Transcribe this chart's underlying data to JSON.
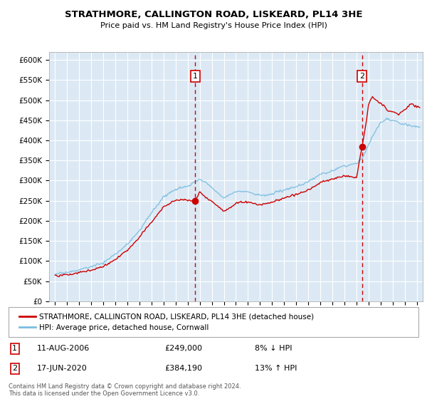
{
  "title": "STRATHMORE, CALLINGTON ROAD, LISKEARD, PL14 3HE",
  "subtitle": "Price paid vs. HM Land Registry's House Price Index (HPI)",
  "background_color": "#ffffff",
  "plot_bg_color": "#dce9f5",
  "grid_color": "#ffffff",
  "ylim": [
    0,
    620000
  ],
  "yticks": [
    0,
    50000,
    100000,
    150000,
    200000,
    250000,
    300000,
    350000,
    400000,
    450000,
    500000,
    550000,
    600000
  ],
  "ytick_labels": [
    "£0",
    "£50K",
    "£100K",
    "£150K",
    "£200K",
    "£250K",
    "£300K",
    "£350K",
    "£400K",
    "£450K",
    "£500K",
    "£550K",
    "£600K"
  ],
  "xlim_start": 1994.5,
  "xlim_end": 2025.5,
  "xtick_years": [
    1995,
    1996,
    1997,
    1998,
    1999,
    2000,
    2001,
    2002,
    2003,
    2004,
    2005,
    2006,
    2007,
    2008,
    2009,
    2010,
    2011,
    2012,
    2013,
    2014,
    2015,
    2016,
    2017,
    2018,
    2019,
    2020,
    2021,
    2022,
    2023,
    2024,
    2025
  ],
  "transaction1_x": 2006.614,
  "transaction1_y": 249000,
  "transaction2_x": 2020.461,
  "transaction2_y": 384190,
  "legend_line1": "STRATHMORE, CALLINGTON ROAD, LISKEARD, PL14 3HE (detached house)",
  "legend_line2": "HPI: Average price, detached house, Cornwall",
  "transaction1_date": "11-AUG-2006",
  "transaction1_price": "£249,000",
  "transaction1_hpi": "8% ↓ HPI",
  "transaction2_date": "17-JUN-2020",
  "transaction2_price": "£384,190",
  "transaction2_hpi": "13% ↑ HPI",
  "footer": "Contains HM Land Registry data © Crown copyright and database right 2024.\nThis data is licensed under the Open Government Licence v3.0.",
  "hpi_color": "#7bbde0",
  "sale_color": "#cc0000",
  "dashed_line_color": "#cc0000",
  "box_color": "#cc0000"
}
